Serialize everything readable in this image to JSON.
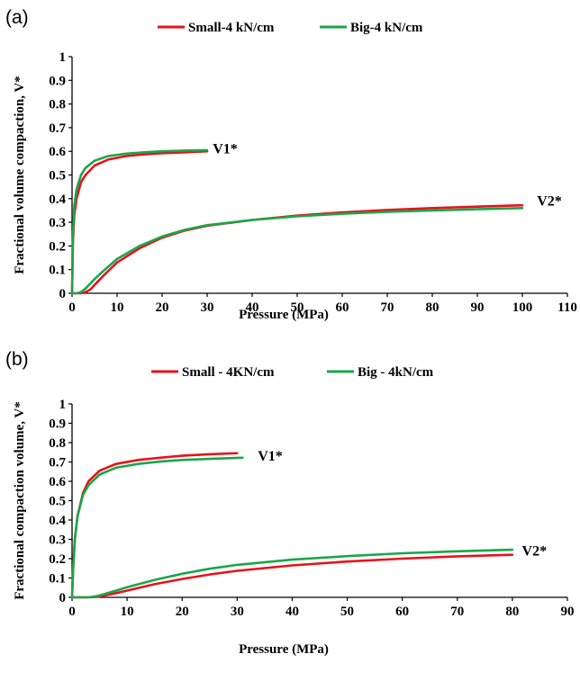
{
  "chart_data": [
    {
      "panel_label": "(a)",
      "type": "line",
      "title": "",
      "xlabel": "Pressure (MPa)",
      "ylabel": "Fractional volume compaction, V*",
      "xlim": [
        0,
        110
      ],
      "ylim": [
        0,
        1
      ],
      "xticks": [
        0,
        10,
        20,
        30,
        40,
        50,
        60,
        70,
        80,
        90,
        100,
        110
      ],
      "yticks": [
        0,
        0.1,
        0.2,
        0.3,
        0.4,
        0.5,
        0.6,
        0.7,
        0.8,
        0.9,
        1
      ],
      "ytick_labels": [
        "0",
        "0.1",
        "0.2",
        "0.3",
        "0.4",
        "0.5",
        "0.6",
        "0.7",
        "0.8",
        "0.9",
        "1"
      ],
      "legend_position": "top",
      "legend": [
        {
          "name": "Small-4 kN/cm",
          "color": "#e8121b"
        },
        {
          "name": "Big-4 kN/cm",
          "color": "#1aa64a"
        }
      ],
      "annotations": [
        {
          "text": "V1*",
          "x": 34,
          "y": 0.61
        },
        {
          "text": "V2*",
          "x": 106,
          "y": 0.39
        }
      ],
      "series": [
        {
          "name": "Small-4 kN/cm",
          "curve": "V1*",
          "color": "#e8121b",
          "x": [
            0,
            0.2,
            0.5,
            1,
            2,
            3,
            5,
            8,
            12,
            16,
            20,
            25,
            30
          ],
          "y": [
            0,
            0.22,
            0.33,
            0.4,
            0.47,
            0.5,
            0.54,
            0.565,
            0.58,
            0.587,
            0.592,
            0.596,
            0.6
          ]
        },
        {
          "name": "Big-4 kN/cm",
          "curve": "V1*",
          "color": "#1aa64a",
          "x": [
            0,
            0.2,
            0.5,
            1,
            2,
            3,
            5,
            8,
            12,
            16,
            20,
            25,
            30
          ],
          "y": [
            0,
            0.25,
            0.37,
            0.44,
            0.5,
            0.53,
            0.56,
            0.58,
            0.59,
            0.596,
            0.6,
            0.603,
            0.605
          ]
        },
        {
          "name": "Small-4 kN/cm",
          "curve": "V2*",
          "color": "#e8121b",
          "x": [
            0,
            2,
            3,
            4,
            5,
            7,
            10,
            15,
            20,
            25,
            30,
            40,
            50,
            60,
            70,
            80,
            90,
            100
          ],
          "y": [
            0,
            0,
            0.005,
            0.015,
            0.035,
            0.075,
            0.13,
            0.19,
            0.235,
            0.265,
            0.285,
            0.31,
            0.328,
            0.342,
            0.352,
            0.36,
            0.366,
            0.372
          ]
        },
        {
          "name": "Big-4 kN/cm",
          "curve": "V2*",
          "color": "#1aa64a",
          "x": [
            0,
            1,
            2,
            3,
            4,
            5,
            7,
            10,
            15,
            20,
            25,
            30,
            40,
            50,
            60,
            70,
            80,
            90,
            100
          ],
          "y": [
            0,
            0,
            0.005,
            0.02,
            0.04,
            0.06,
            0.095,
            0.145,
            0.2,
            0.24,
            0.268,
            0.288,
            0.31,
            0.325,
            0.336,
            0.344,
            0.35,
            0.355,
            0.36
          ]
        }
      ]
    },
    {
      "panel_label": "(b)",
      "type": "line",
      "title": "",
      "xlabel": "Pressure (MPa)",
      "ylabel": "Fractional compaction volume, V*",
      "xlim": [
        0,
        90
      ],
      "ylim": [
        0,
        1
      ],
      "xticks": [
        0,
        10,
        20,
        30,
        40,
        50,
        60,
        70,
        80,
        90
      ],
      "yticks": [
        0,
        0.1,
        0.2,
        0.3,
        0.4,
        0.5,
        0.6,
        0.7,
        0.8,
        0.9,
        1
      ],
      "ytick_labels": [
        "0",
        "0.1",
        "0.2",
        "0.3",
        "0.4",
        "0.5",
        "0.6",
        "0.7",
        "0.8",
        "0.9",
        "1"
      ],
      "legend_position": "top",
      "legend": [
        {
          "name": "Small - 4KN/cm",
          "color": "#e8121b"
        },
        {
          "name": "Big - 4kN/cm",
          "color": "#1aa64a"
        }
      ],
      "annotations": [
        {
          "text": "V1*",
          "x": 36,
          "y": 0.73
        },
        {
          "text": "V2*",
          "x": 84,
          "y": 0.24
        }
      ],
      "series": [
        {
          "name": "Small - 4KN/cm",
          "curve": "V1*",
          "color": "#e8121b",
          "x": [
            0,
            0.2,
            0.5,
            1,
            2,
            3,
            5,
            8,
            12,
            16,
            20,
            25,
            30
          ],
          "y": [
            0,
            0.15,
            0.3,
            0.42,
            0.54,
            0.6,
            0.655,
            0.69,
            0.71,
            0.722,
            0.732,
            0.74,
            0.745
          ]
        },
        {
          "name": "Big - 4kN/cm",
          "curve": "V1*",
          "color": "#1aa64a",
          "x": [
            0,
            0.2,
            0.5,
            1,
            2,
            3,
            5,
            8,
            12,
            16,
            20,
            25,
            31
          ],
          "y": [
            0,
            0.15,
            0.3,
            0.42,
            0.53,
            0.58,
            0.635,
            0.67,
            0.69,
            0.702,
            0.71,
            0.716,
            0.722
          ]
        },
        {
          "name": "Small - 4KN/cm",
          "curve": "V2*",
          "color": "#e8121b",
          "x": [
            0,
            3,
            4,
            5,
            6,
            8,
            10,
            15,
            20,
            25,
            30,
            40,
            50,
            60,
            70,
            80
          ],
          "y": [
            0,
            0,
            0.002,
            0.005,
            0.01,
            0.022,
            0.035,
            0.068,
            0.095,
            0.118,
            0.137,
            0.165,
            0.185,
            0.2,
            0.212,
            0.22
          ]
        },
        {
          "name": "Big - 4kN/cm",
          "curve": "V2*",
          "color": "#1aa64a",
          "x": [
            0,
            3,
            4,
            5,
            6,
            8,
            10,
            15,
            20,
            25,
            30,
            40,
            50,
            60,
            70,
            80
          ],
          "y": [
            0,
            0,
            0.004,
            0.01,
            0.018,
            0.035,
            0.052,
            0.09,
            0.122,
            0.148,
            0.168,
            0.195,
            0.213,
            0.228,
            0.238,
            0.246
          ]
        }
      ]
    }
  ]
}
